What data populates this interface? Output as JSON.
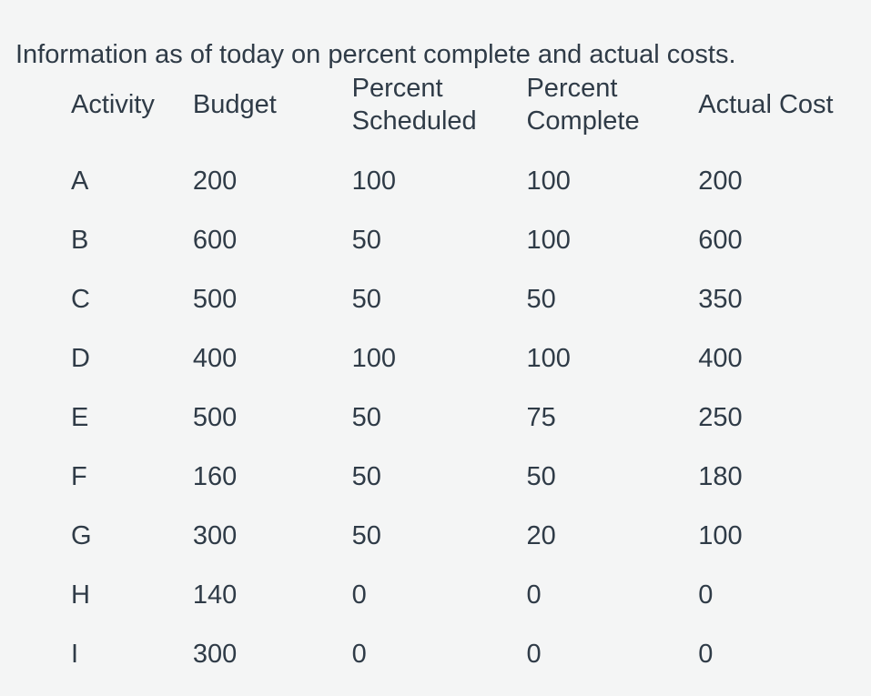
{
  "page": {
    "background_color": "#f4f5f5",
    "text_color": "#2f3b47",
    "intro_text": "Information as of today on percent complete and actual costs."
  },
  "table": {
    "columns": [
      "Activity",
      "Budget",
      "Percent Scheduled",
      "Percent Complete",
      "Actual Cost"
    ],
    "rows": [
      {
        "activity": "A",
        "budget": "200",
        "percent_scheduled": "100",
        "percent_complete": "100",
        "actual_cost": "200"
      },
      {
        "activity": "B",
        "budget": "600",
        "percent_scheduled": "50",
        "percent_complete": "100",
        "actual_cost": "600"
      },
      {
        "activity": "C",
        "budget": "500",
        "percent_scheduled": "50",
        "percent_complete": "50",
        "actual_cost": "350"
      },
      {
        "activity": "D",
        "budget": "400",
        "percent_scheduled": "100",
        "percent_complete": "100",
        "actual_cost": "400"
      },
      {
        "activity": "E",
        "budget": "500",
        "percent_scheduled": "50",
        "percent_complete": "75",
        "actual_cost": "250"
      },
      {
        "activity": "F",
        "budget": "160",
        "percent_scheduled": "50",
        "percent_complete": "50",
        "actual_cost": "180"
      },
      {
        "activity": "G",
        "budget": "300",
        "percent_scheduled": "50",
        "percent_complete": "20",
        "actual_cost": "100"
      },
      {
        "activity": "H",
        "budget": "140",
        "percent_scheduled": "0",
        "percent_complete": "0",
        "actual_cost": "0"
      },
      {
        "activity": "I",
        "budget": "300",
        "percent_scheduled": "0",
        "percent_complete": "0",
        "actual_cost": "0"
      }
    ]
  }
}
